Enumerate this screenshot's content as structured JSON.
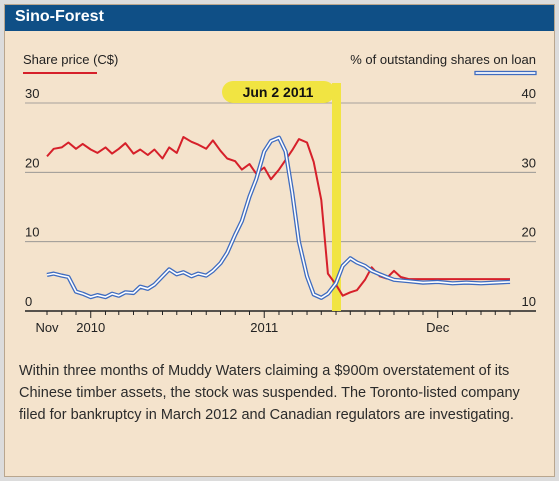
{
  "panel": {
    "title": "Sino-Forest"
  },
  "chart_data": {
    "type": "line",
    "left_axis_label": "Share price (C$)",
    "right_axis_label": "% of outstanding shares on loan",
    "left_ylim": [
      0,
      30
    ],
    "right_ylim": [
      10,
      40
    ],
    "left_ticks": [
      "0",
      "10",
      "20",
      "30"
    ],
    "right_ticks": [
      "10",
      "20",
      "30",
      "40"
    ],
    "x_ticks": [
      "Nov",
      "2010",
      "2011",
      "Dec"
    ],
    "grid": true,
    "highlight": {
      "label": "Jun 2 2011",
      "date": "2011-06-02"
    },
    "series": [
      {
        "name": "Share price (C$)",
        "axis": "left",
        "color": "#d6202a",
        "points": [
          [
            "2009-10-01",
            22.3
          ],
          [
            "2009-10-15",
            23.4
          ],
          [
            "2009-11-01",
            23.6
          ],
          [
            "2009-11-15",
            24.3
          ],
          [
            "2009-12-01",
            23.4
          ],
          [
            "2009-12-15",
            24.1
          ],
          [
            "2010-01-01",
            23.3
          ],
          [
            "2010-01-15",
            22.8
          ],
          [
            "2010-02-01",
            23.6
          ],
          [
            "2010-02-15",
            22.7
          ],
          [
            "2010-03-01",
            23.4
          ],
          [
            "2010-03-15",
            24.2
          ],
          [
            "2010-04-01",
            22.7
          ],
          [
            "2010-04-15",
            23.3
          ],
          [
            "2010-05-01",
            22.5
          ],
          [
            "2010-05-15",
            23.3
          ],
          [
            "2010-06-01",
            22.0
          ],
          [
            "2010-06-15",
            23.6
          ],
          [
            "2010-07-01",
            22.8
          ],
          [
            "2010-07-15",
            25.1
          ],
          [
            "2010-08-01",
            24.4
          ],
          [
            "2010-08-15",
            24.0
          ],
          [
            "2010-09-01",
            23.4
          ],
          [
            "2010-09-15",
            24.6
          ],
          [
            "2010-10-01",
            23.1
          ],
          [
            "2010-10-15",
            22.0
          ],
          [
            "2010-11-01",
            21.6
          ],
          [
            "2010-11-15",
            20.4
          ],
          [
            "2010-12-01",
            21.2
          ],
          [
            "2010-12-15",
            19.8
          ],
          [
            "2011-01-01",
            20.7
          ],
          [
            "2011-01-15",
            19.0
          ],
          [
            "2011-02-01",
            20.4
          ],
          [
            "2011-02-15",
            21.8
          ],
          [
            "2011-03-01",
            23.2
          ],
          [
            "2011-03-15",
            24.8
          ],
          [
            "2011-04-01",
            24.3
          ],
          [
            "2011-04-15",
            21.5
          ],
          [
            "2011-05-01",
            16.0
          ],
          [
            "2011-05-15",
            5.4
          ],
          [
            "2011-06-01",
            3.8
          ],
          [
            "2011-06-15",
            2.2
          ],
          [
            "2011-07-01",
            2.7
          ],
          [
            "2011-07-15",
            3.0
          ],
          [
            "2011-08-01",
            4.5
          ],
          [
            "2011-08-15",
            6.3
          ],
          [
            "2011-09-01",
            5.0
          ],
          [
            "2011-09-15",
            4.7
          ],
          [
            "2011-10-01",
            5.8
          ],
          [
            "2011-10-15",
            4.9
          ],
          [
            "2011-11-01",
            4.6
          ],
          [
            "2011-12-01",
            4.6
          ],
          [
            "2012-01-01",
            4.6
          ],
          [
            "2012-02-01",
            4.6
          ],
          [
            "2012-03-01",
            4.6
          ],
          [
            "2012-04-01",
            4.6
          ],
          [
            "2012-05-01",
            4.6
          ],
          [
            "2012-06-01",
            4.6
          ]
        ]
      },
      {
        "name": "% of outstanding shares on loan",
        "axis": "right",
        "color": "#3f6cbf",
        "points": [
          [
            "2009-10-01",
            15.2
          ],
          [
            "2009-10-15",
            15.4
          ],
          [
            "2009-11-01",
            15.1
          ],
          [
            "2009-11-15",
            14.9
          ],
          [
            "2009-12-01",
            12.8
          ],
          [
            "2009-12-15",
            12.5
          ],
          [
            "2010-01-01",
            12.0
          ],
          [
            "2010-01-15",
            12.3
          ],
          [
            "2010-02-01",
            12.0
          ],
          [
            "2010-02-15",
            12.5
          ],
          [
            "2010-03-01",
            12.2
          ],
          [
            "2010-03-15",
            12.7
          ],
          [
            "2010-04-01",
            12.6
          ],
          [
            "2010-04-15",
            13.5
          ],
          [
            "2010-05-01",
            13.2
          ],
          [
            "2010-05-15",
            13.8
          ],
          [
            "2010-06-01",
            15.0
          ],
          [
            "2010-06-15",
            16.0
          ],
          [
            "2010-07-01",
            15.3
          ],
          [
            "2010-07-15",
            15.6
          ],
          [
            "2010-08-01",
            15.0
          ],
          [
            "2010-08-15",
            15.4
          ],
          [
            "2010-09-01",
            15.1
          ],
          [
            "2010-09-15",
            15.8
          ],
          [
            "2010-10-01",
            16.9
          ],
          [
            "2010-10-15",
            18.4
          ],
          [
            "2010-11-01",
            21.0
          ],
          [
            "2010-11-15",
            23.0
          ],
          [
            "2010-12-01",
            26.5
          ],
          [
            "2010-12-15",
            29.0
          ],
          [
            "2011-01-01",
            33.0
          ],
          [
            "2011-01-15",
            34.5
          ],
          [
            "2011-02-01",
            35.0
          ],
          [
            "2011-02-15",
            33.0
          ],
          [
            "2011-03-01",
            27.0
          ],
          [
            "2011-03-15",
            20.0
          ],
          [
            "2011-04-01",
            15.0
          ],
          [
            "2011-04-15",
            12.4
          ],
          [
            "2011-05-01",
            11.9
          ],
          [
            "2011-05-15",
            12.5
          ],
          [
            "2011-06-01",
            14.0
          ],
          [
            "2011-06-15",
            16.5
          ],
          [
            "2011-07-01",
            17.6
          ],
          [
            "2011-07-15",
            17.0
          ],
          [
            "2011-08-01",
            16.5
          ],
          [
            "2011-08-15",
            15.8
          ],
          [
            "2011-09-01",
            15.3
          ],
          [
            "2011-09-15",
            14.9
          ],
          [
            "2011-10-01",
            14.5
          ],
          [
            "2011-11-01",
            14.3
          ],
          [
            "2011-12-01",
            14.1
          ],
          [
            "2012-01-01",
            14.2
          ],
          [
            "2012-02-01",
            14.0
          ],
          [
            "2012-03-01",
            14.1
          ],
          [
            "2012-04-01",
            14.0
          ],
          [
            "2012-05-01",
            14.1
          ],
          [
            "2012-06-01",
            14.2
          ]
        ]
      }
    ]
  },
  "caption": "Within three months of Muddy Waters claiming a $900m overstatement of its Chinese timber assets, the stock was suspended. The Toronto-listed company filed for bankruptcy in March 2012 and Canadian regulators are investigating."
}
